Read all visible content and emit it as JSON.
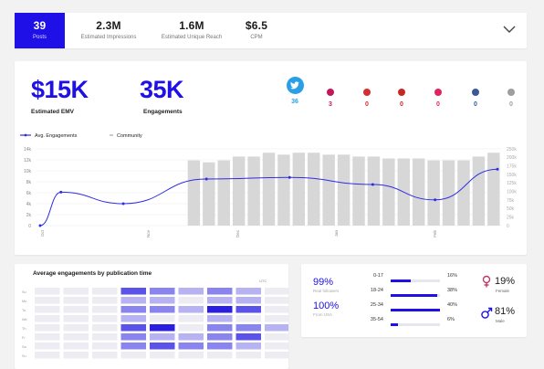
{
  "summary": {
    "posts": {
      "value": "39",
      "label": "Posts"
    },
    "impressions": {
      "value": "2.3M",
      "label": "Estimated Impressions"
    },
    "reach": {
      "value": "1.6M",
      "label": "Estimated Unique Reach"
    },
    "cpm": {
      "value": "$6.5",
      "label": "CPM"
    }
  },
  "main": {
    "emv": {
      "value": "$15K",
      "label": "Estimated EMV"
    },
    "engagements": {
      "value": "35K",
      "label": "Engagements"
    },
    "social": [
      {
        "icon": "twitter-icon",
        "count": "36",
        "color": "#2b9fe6"
      },
      {
        "icon": "instagram-icon",
        "count": "3",
        "color": "#c2185b"
      },
      {
        "icon": "youtube-icon",
        "count": "0",
        "color": "#d32f2f"
      },
      {
        "icon": "pinterest-icon",
        "count": "0",
        "color": "#c62828"
      },
      {
        "icon": "instagram-story-icon",
        "count": "0",
        "color": "#e0245e"
      },
      {
        "icon": "facebook-icon",
        "count": "0",
        "color": "#3b5998"
      },
      {
        "icon": "blog-icon",
        "count": "0",
        "color": "#9e9e9e"
      }
    ],
    "legend": {
      "line": "Avg. Engagements",
      "bar": "Community"
    }
  },
  "chart_data": {
    "type": "line",
    "title": "",
    "x_labels": [
      "Oct",
      "Nov",
      "Dec",
      "Jan",
      "Feb"
    ],
    "y_left_ticks": [
      "0",
      "2k",
      "4k",
      "6k",
      "8k",
      "10k",
      "12k",
      "14k"
    ],
    "y_right_ticks": [
      "0",
      "25k",
      "50k",
      "75k",
      "100k",
      "125k",
      "150k",
      "175k",
      "200k",
      "250k"
    ],
    "ylim_left": [
      0,
      14000
    ],
    "ylim_right": [
      0,
      250000
    ],
    "series": [
      {
        "name": "Avg. Engagements",
        "axis": "left",
        "x": [
          0,
          1,
          4,
          8,
          12,
          16,
          19,
          22
        ],
        "values": [
          0,
          6100,
          4000,
          8500,
          8800,
          7500,
          4700,
          10300
        ]
      },
      {
        "name": "Community",
        "axis": "right",
        "type": "bar",
        "values": [
          0,
          0,
          0,
          0,
          0,
          0,
          0,
          0,
          0,
          0,
          170000,
          165000,
          170000,
          180000,
          180000,
          190000,
          185000,
          190000,
          190000,
          185000,
          185000,
          180000,
          180000,
          175000,
          175000,
          175000,
          170000,
          170000,
          170000,
          180000,
          190000
        ]
      }
    ],
    "colors": {
      "line": "#2f2ce6",
      "bar": "#d7d7d7"
    },
    "grid": true,
    "legend_position": "top-left"
  },
  "heatmap": {
    "title": "Average engagements by publication time",
    "corner": "UTC",
    "row_labels": [
      "Su",
      "Mo",
      "Tu",
      "We",
      "Th",
      "Fr",
      "Sa",
      "Su"
    ],
    "rows": [
      [
        0,
        0,
        0,
        3,
        2,
        1,
        2,
        1,
        0
      ],
      [
        0,
        0,
        0,
        1,
        1,
        0,
        1,
        1,
        0
      ],
      [
        0,
        0,
        0,
        2,
        2,
        1,
        4,
        3,
        0
      ],
      [
        0,
        0,
        0,
        1,
        0,
        0,
        1,
        0,
        0
      ],
      [
        0,
        0,
        0,
        3,
        4,
        0,
        2,
        2,
        1
      ],
      [
        0,
        0,
        0,
        2,
        1,
        1,
        2,
        3,
        0
      ],
      [
        0,
        0,
        0,
        2,
        3,
        2,
        2,
        1,
        0
      ],
      [
        0,
        0,
        0,
        0,
        0,
        0,
        0,
        0,
        0
      ]
    ]
  },
  "audience": {
    "real_pct": "99%",
    "real_label": "Real followers",
    "usa_pct": "100%",
    "usa_label": "From USA",
    "ages": [
      {
        "range": "0-17",
        "pct": "16%",
        "value": 16
      },
      {
        "range": "18-24",
        "pct": "38%",
        "value": 38
      },
      {
        "range": "25-34",
        "pct": "40%",
        "value": 40
      },
      {
        "range": "35-54",
        "pct": "6%",
        "value": 6
      }
    ],
    "female": {
      "pct": "19%",
      "label": "Female"
    },
    "male": {
      "pct": "81%",
      "label": "Male"
    }
  }
}
